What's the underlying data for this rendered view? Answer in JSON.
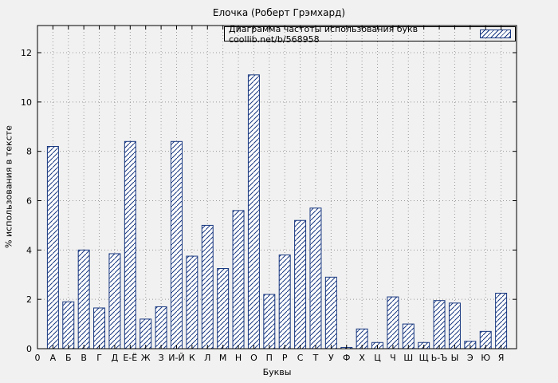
{
  "chart_data": {
    "type": "bar",
    "title": "Елочка (Роберт Грэмхард)",
    "legend": "Диаграмма частоты использования букв coollib.net/b/568958",
    "xlabel": "Буквы",
    "ylabel": "% использования в тексте",
    "origin_tick_label": "0",
    "categories": [
      "А",
      "Б",
      "В",
      "Г",
      "Д",
      "Е-Ё",
      "Ж",
      "З",
      "И-Й",
      "К",
      "Л",
      "М",
      "Н",
      "О",
      "П",
      "Р",
      "С",
      "Т",
      "У",
      "Ф",
      "Х",
      "Ц",
      "Ч",
      "Ш",
      "Щ",
      "Ь-Ъ",
      "Ы",
      "Э",
      "Ю",
      "Я"
    ],
    "values": [
      8.2,
      1.9,
      4.0,
      1.65,
      3.85,
      8.4,
      1.2,
      1.7,
      8.4,
      3.75,
      5.0,
      3.25,
      5.6,
      11.1,
      2.2,
      3.8,
      5.2,
      5.7,
      2.9,
      0.05,
      0.8,
      0.25,
      2.1,
      1.0,
      0.25,
      1.95,
      1.85,
      0.3,
      0.7,
      2.25
    ],
    "yticks": [
      0,
      2,
      4,
      6,
      8,
      10,
      12
    ],
    "ylim": [
      0,
      13.1
    ],
    "grid": true,
    "legend_position": "top-right",
    "colors": {
      "bar_stroke": "#16367f",
      "bar_fill": "#ffffff",
      "background": "#f1f1f1",
      "grid": "#9a9a9a",
      "axis": "#000000"
    }
  }
}
